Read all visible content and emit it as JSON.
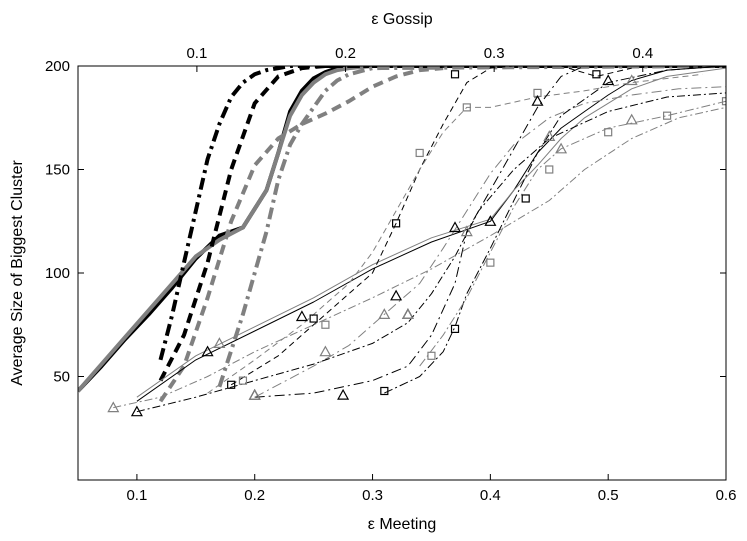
{
  "chart_data": {
    "type": "line",
    "title": "",
    "xlabel": "ε Meeting",
    "ylabel": "Average Size of Biggest Cluster",
    "x2label": "ε Gossip",
    "xlim": [
      0.05,
      0.6
    ],
    "ylim": [
      0,
      200
    ],
    "x2lim": [
      0.02,
      0.456
    ],
    "xticks": [
      "0.1",
      "0.2",
      "0.3",
      "0.4",
      "0.5",
      "0.6"
    ],
    "xtick_values": [
      0.1,
      0.2,
      0.3,
      0.4,
      0.5,
      0.6
    ],
    "yticks": [
      "50",
      "100",
      "150",
      "200"
    ],
    "ytick_values": [
      50,
      100,
      150,
      200
    ],
    "x2ticks": [
      "0.1",
      "0.2",
      "0.3",
      "0.4"
    ],
    "x2tick_values": [
      0.1,
      0.2,
      0.3,
      0.4
    ],
    "grid": false,
    "legend": "none",
    "series": [
      {
        "color": "#000000",
        "width": 4,
        "dash": "",
        "marker": "none",
        "x": [
          0.05,
          0.07,
          0.09,
          0.11,
          0.13,
          0.15,
          0.17,
          0.19,
          0.21,
          0.22,
          0.23,
          0.24,
          0.25,
          0.26,
          0.27,
          0.28,
          0.3,
          0.4,
          0.6
        ],
        "y": [
          43,
          55,
          68,
          80,
          93,
          107,
          118,
          122,
          140,
          158,
          178,
          188,
          194,
          197,
          199,
          200,
          200,
          200,
          200
        ]
      },
      {
        "color": "#808080",
        "width": 4,
        "dash": "",
        "marker": "none",
        "x": [
          0.05,
          0.07,
          0.09,
          0.11,
          0.13,
          0.15,
          0.17,
          0.19,
          0.21,
          0.22,
          0.23,
          0.24,
          0.25,
          0.26,
          0.27,
          0.28,
          0.3,
          0.4,
          0.6
        ],
        "y": [
          43,
          56,
          69,
          82,
          95,
          108,
          116,
          122,
          140,
          158,
          176,
          186,
          192,
          196,
          198,
          199,
          200,
          200,
          200
        ]
      },
      {
        "color": "#000000",
        "width": 4,
        "dash": "10,6",
        "marker": "none",
        "x": [
          0.12,
          0.14,
          0.16,
          0.18,
          0.2,
          0.22,
          0.24,
          0.26,
          0.28,
          0.3,
          0.4,
          0.6
        ],
        "y": [
          48,
          70,
          105,
          150,
          182,
          195,
          199,
          200,
          200,
          200,
          200,
          200
        ]
      },
      {
        "color": "#808080",
        "width": 4,
        "dash": "10,6",
        "marker": "none",
        "x": [
          0.12,
          0.14,
          0.16,
          0.18,
          0.2,
          0.22,
          0.24,
          0.26,
          0.28,
          0.3,
          0.32,
          0.34,
          0.36
        ],
        "y": [
          38,
          55,
          88,
          125,
          152,
          165,
          172,
          177,
          183,
          190,
          195,
          198,
          199
        ]
      },
      {
        "color": "#000000",
        "width": 4,
        "dash": "12,5,3,5",
        "marker": "none",
        "x": [
          0.12,
          0.13,
          0.14,
          0.15,
          0.16,
          0.17,
          0.18,
          0.19,
          0.2,
          0.21,
          0.22,
          0.23,
          0.25,
          0.3,
          0.6
        ],
        "y": [
          58,
          80,
          105,
          130,
          155,
          172,
          185,
          192,
          196,
          198,
          199,
          200,
          200,
          200,
          200
        ]
      },
      {
        "color": "#808080",
        "width": 4,
        "dash": "12,5,3,5",
        "marker": "none",
        "x": [
          0.17,
          0.19,
          0.21,
          0.22,
          0.23,
          0.24,
          0.25,
          0.26,
          0.27,
          0.28,
          0.3,
          0.6
        ],
        "y": [
          45,
          80,
          120,
          145,
          162,
          172,
          180,
          188,
          193,
          196,
          199,
          200
        ]
      },
      {
        "color": "#000000",
        "width": 1,
        "dash": "",
        "marker": "none",
        "x": [
          0.1,
          0.15,
          0.2,
          0.25,
          0.3,
          0.35,
          0.4,
          0.42,
          0.44,
          0.46,
          0.48,
          0.5,
          0.52,
          0.55,
          0.6
        ],
        "y": [
          38,
          58,
          72,
          86,
          102,
          115,
          125,
          140,
          158,
          170,
          178,
          186,
          193,
          198,
          200
        ]
      },
      {
        "color": "#808080",
        "width": 1,
        "dash": "",
        "marker": "none",
        "x": [
          0.1,
          0.15,
          0.2,
          0.25,
          0.3,
          0.35,
          0.4,
          0.42,
          0.44,
          0.46,
          0.48,
          0.5,
          0.52,
          0.55,
          0.6
        ],
        "y": [
          40,
          60,
          74,
          88,
          104,
          117,
          126,
          140,
          152,
          165,
          175,
          182,
          189,
          195,
          199
        ]
      },
      {
        "color": "#000000",
        "width": 1,
        "dash": "6,4",
        "marker": "square",
        "x": [
          0.18,
          0.22,
          0.26,
          0.3,
          0.32,
          0.34,
          0.36,
          0.38,
          0.4,
          0.42,
          0.44,
          0.46,
          0.49,
          0.52
        ],
        "y": [
          46,
          60,
          80,
          100,
          124,
          150,
          172,
          192,
          199,
          200,
          200,
          200,
          195,
          199
        ],
        "markers": [
          [
            0.18,
            46
          ],
          [
            0.25,
            78
          ],
          [
            0.32,
            124
          ],
          [
            0.37,
            196
          ],
          [
            0.49,
            196
          ]
        ]
      },
      {
        "color": "#808080",
        "width": 1,
        "dash": "6,4",
        "marker": "square",
        "x": [
          0.16,
          0.2,
          0.24,
          0.28,
          0.3,
          0.32,
          0.34,
          0.36,
          0.38,
          0.4,
          0.44,
          0.48,
          0.52,
          0.58
        ],
        "y": [
          42,
          58,
          75,
          95,
          110,
          130,
          150,
          168,
          180,
          180,
          185,
          188,
          192,
          196
        ],
        "markers": [
          [
            0.19,
            48
          ],
          [
            0.26,
            75
          ],
          [
            0.34,
            158
          ],
          [
            0.38,
            180
          ],
          [
            0.44,
            187
          ]
        ]
      },
      {
        "color": "#000000",
        "width": 1,
        "dash": "10,4,2,4",
        "marker": "triangle",
        "x": [
          0.2,
          0.25,
          0.3,
          0.33,
          0.35,
          0.37,
          0.38,
          0.4,
          0.42,
          0.44,
          0.46,
          0.48,
          0.5,
          0.55,
          0.6
        ],
        "y": [
          40,
          42,
          48,
          55,
          70,
          95,
          120,
          140,
          160,
          180,
          195,
          200,
          200,
          200,
          200
        ],
        "markers": [
          [
            0.2,
            41
          ],
          [
            0.275,
            41
          ],
          [
            0.32,
            89
          ],
          [
            0.37,
            122
          ],
          [
            0.44,
            183
          ]
        ]
      },
      {
        "color": "#808080",
        "width": 1,
        "dash": "10,4,2,4",
        "marker": "triangle",
        "x": [
          0.2,
          0.25,
          0.28,
          0.31,
          0.34,
          0.36,
          0.38,
          0.4,
          0.42,
          0.45,
          0.48,
          0.52,
          0.56,
          0.6
        ],
        "y": [
          40,
          55,
          65,
          80,
          95,
          112,
          130,
          148,
          162,
          175,
          182,
          186,
          189,
          190
        ],
        "markers": [
          [
            0.2,
            41
          ],
          [
            0.26,
            62
          ],
          [
            0.31,
            80
          ],
          [
            0.38,
            120
          ],
          [
            0.45,
            166
          ],
          [
            0.52,
            193
          ]
        ]
      },
      {
        "color": "#000000",
        "width": 1,
        "dash": "8,3,2,3",
        "marker": "triangle",
        "x": [
          0.1,
          0.15,
          0.2,
          0.25,
          0.3,
          0.33,
          0.35,
          0.37,
          0.39,
          0.42,
          0.45,
          0.5,
          0.55,
          0.6
        ],
        "y": [
          33,
          40,
          48,
          56,
          66,
          76,
          90,
          108,
          130,
          150,
          165,
          178,
          185,
          187
        ],
        "markers": [
          [
            0.1,
            33
          ],
          [
            0.16,
            62
          ],
          [
            0.24,
            79
          ],
          [
            0.33,
            80
          ],
          [
            0.4,
            125
          ],
          [
            0.5,
            193
          ]
        ]
      },
      {
        "color": "#808080",
        "width": 1,
        "dash": "8,3,2,3",
        "marker": "triangle",
        "x": [
          0.08,
          0.12,
          0.16,
          0.2,
          0.25,
          0.3,
          0.35,
          0.4,
          0.45,
          0.48,
          0.52,
          0.56,
          0.6
        ],
        "y": [
          35,
          40,
          50,
          62,
          75,
          88,
          102,
          118,
          135,
          150,
          165,
          175,
          180
        ],
        "markers": [
          [
            0.08,
            35
          ],
          [
            0.17,
            66
          ],
          [
            0.33,
            80
          ],
          [
            0.46,
            160
          ],
          [
            0.52,
            174
          ]
        ]
      },
      {
        "color": "#000000",
        "width": 1,
        "dash": "9,3,2,3",
        "marker": "square",
        "x": [
          0.31,
          0.34,
          0.36,
          0.37,
          0.38,
          0.4,
          0.42,
          0.44,
          0.46,
          0.5,
          0.55,
          0.6
        ],
        "y": [
          42,
          50,
          62,
          74,
          90,
          112,
          135,
          158,
          176,
          192,
          198,
          200
        ],
        "markers": [
          [
            0.31,
            43
          ],
          [
            0.37,
            73
          ],
          [
            0.43,
            136
          ]
        ]
      },
      {
        "color": "#808080",
        "width": 1,
        "dash": "9,3,2,3",
        "marker": "square",
        "x": [
          0.34,
          0.36,
          0.38,
          0.4,
          0.42,
          0.44,
          0.46,
          0.48,
          0.5,
          0.55,
          0.6
        ],
        "y": [
          55,
          70,
          88,
          110,
          132,
          150,
          160,
          165,
          170,
          176,
          183
        ],
        "markers": [
          [
            0.35,
            60
          ],
          [
            0.4,
            105
          ],
          [
            0.45,
            150
          ],
          [
            0.5,
            168
          ],
          [
            0.55,
            176
          ],
          [
            0.6,
            183
          ]
        ]
      }
    ]
  }
}
